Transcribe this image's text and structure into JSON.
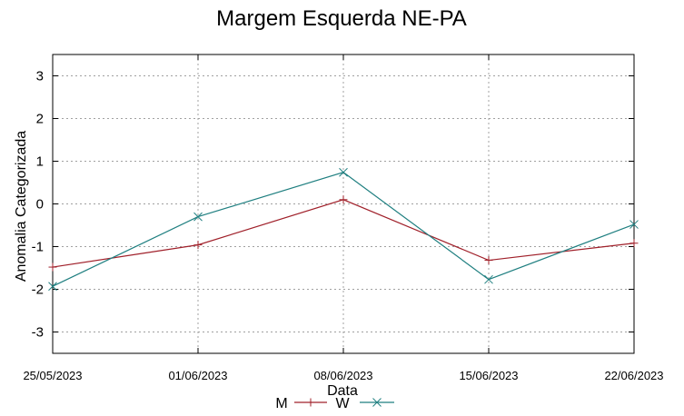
{
  "chart_data": {
    "type": "line",
    "title": "Margem Esquerda NE-PA",
    "xlabel": "Data",
    "ylabel": "Anomalia Categorizada",
    "ylim": [
      -3.5,
      3.5
    ],
    "yticks": [
      "-3",
      "-2",
      "-1",
      "0",
      "1",
      "2",
      "3"
    ],
    "categories": [
      "25/05/2023",
      "01/06/2023",
      "08/06/2023",
      "15/06/2023",
      "22/06/2023"
    ],
    "grid": true,
    "legend_position": "bottom-center",
    "series": [
      {
        "name": "M",
        "color": "#a0202a",
        "marker": "plus",
        "values": [
          -1.48,
          -0.96,
          0.1,
          -1.32,
          -0.92
        ]
      },
      {
        "name": "W",
        "color": "#1f7f80",
        "marker": "cross",
        "values": [
          -1.93,
          -0.3,
          0.74,
          -1.77,
          -0.48
        ]
      }
    ]
  }
}
